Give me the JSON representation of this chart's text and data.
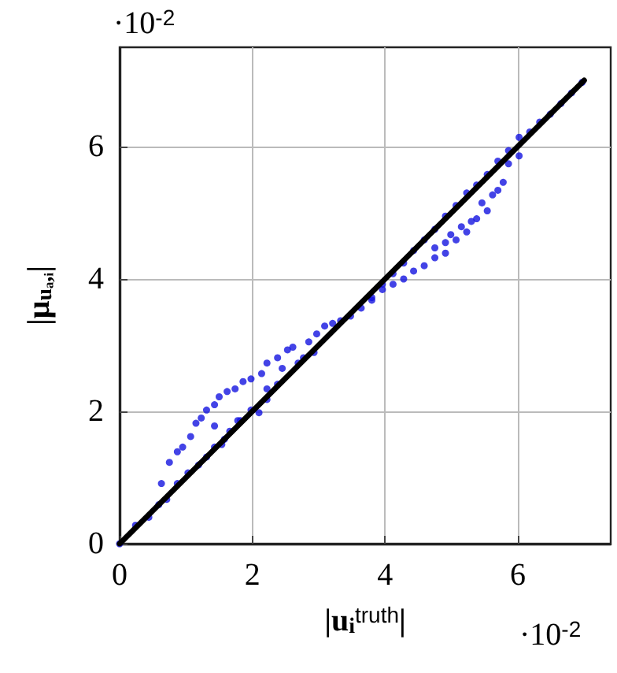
{
  "chart_data": {
    "type": "scatter",
    "xlabel": "|u$_{i}$$^{truth}$|",
    "ylabel": "|μ$_{uₐ,ᵢ}$|",
    "annotations": [
      "·10$^{-2}$",
      "·10$^{-2}$"
    ],
    "xlim": [
      0,
      7.4
    ],
    "ylim": [
      0,
      7.5
    ],
    "xticks": [
      0,
      2,
      4,
      6
    ],
    "yticks": [
      0,
      2,
      4,
      6
    ],
    "grid": true,
    "series": [
      {
        "color": "#1414e0",
        "marker": "circle",
        "x": [
          0,
          0.24,
          0.44,
          0.59,
          0.71,
          0.87,
          1.03,
          1.19,
          1.31,
          1.43,
          1.54,
          1.66,
          1.82,
          1.98,
          2.1,
          2.22,
          2.38,
          0.63,
          0.75,
          0.87,
          0.95,
          1.07,
          1.15,
          1.23,
          1.31,
          1.43,
          1.5,
          1.62,
          1.74,
          1.86,
          1.98,
          2.14,
          2.22,
          2.38,
          2.53,
          2.61,
          2.69,
          2.85,
          2.97,
          3.09,
          3.21,
          3.33,
          3.48,
          3.64,
          3.8,
          3.96,
          4.12,
          4.28,
          4.43,
          4.59,
          4.75,
          4.91,
          5.07,
          5.23,
          5.38,
          5.54,
          5.7,
          5.86,
          6.02,
          6.18,
          6.33,
          6.49,
          6.65,
          6.81,
          6.97,
          3.8,
          3.96,
          4.12,
          4.28,
          4.43,
          4.59,
          4.75,
          4.91,
          5.07,
          5.23,
          5.38,
          5.46,
          5.54,
          5.7,
          5.78,
          5.86,
          6.02,
          4.75,
          4.99,
          5.15,
          5.3,
          5.62,
          4.91,
          1.43,
          1.78,
          1.58,
          2.22,
          2.45,
          2.77,
          2.93
        ],
        "values": [
          0,
          0.28,
          0.4,
          0.59,
          0.67,
          0.91,
          1.07,
          1.19,
          1.31,
          1.46,
          1.5,
          1.7,
          1.86,
          2.02,
          1.98,
          2.18,
          2.41,
          0.91,
          1.23,
          1.39,
          1.46,
          1.62,
          1.82,
          1.9,
          2.02,
          2.1,
          2.22,
          2.3,
          2.34,
          2.45,
          2.49,
          2.57,
          2.73,
          2.81,
          2.93,
          2.97,
          2.73,
          3.05,
          3.17,
          3.29,
          3.33,
          3.37,
          3.44,
          3.56,
          3.72,
          3.92,
          4.08,
          4.24,
          4.43,
          4.59,
          4.75,
          4.95,
          5.11,
          5.3,
          5.42,
          5.58,
          5.78,
          5.94,
          6.14,
          6.22,
          6.37,
          6.49,
          6.65,
          6.81,
          6.97,
          3.68,
          3.84,
          3.92,
          4.0,
          4.12,
          4.2,
          4.32,
          4.55,
          4.59,
          4.71,
          4.91,
          5.15,
          5.03,
          5.34,
          5.46,
          5.74,
          5.86,
          4.47,
          4.67,
          4.79,
          4.87,
          5.27,
          4.39,
          1.78,
          1.86,
          1.58,
          2.34,
          2.65,
          2.81,
          2.89
        ]
      },
      {
        "type": "line",
        "color": "#000000",
        "marker": "none",
        "line_style": "solid",
        "x": [
          0,
          7
        ],
        "values": [
          0,
          7
        ]
      }
    ]
  }
}
